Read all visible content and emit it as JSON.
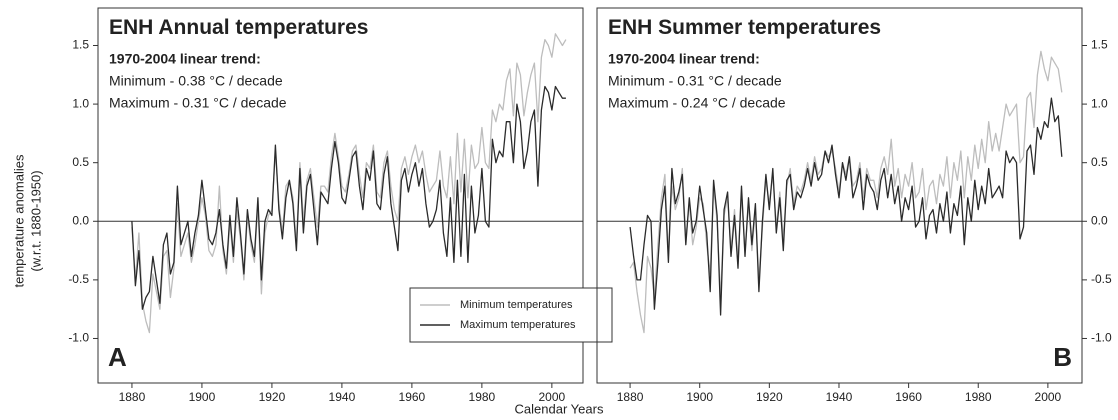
{
  "chart_data": [
    {
      "type": "line",
      "title": "ENH Annual temperatures",
      "panel_label": "A",
      "trend_title": "1970-2004 linear trend:",
      "trend_lines": [
        "Minimum - 0.38 °C / decade",
        "Maximum - 0.31 °C / decade"
      ],
      "xlim": [
        1870.3,
        2008.9
      ],
      "xticks": [
        1880,
        1900,
        1920,
        1940,
        1960,
        1980,
        2000
      ],
      "ylim": [
        -1.38,
        1.82
      ],
      "yticks": [
        {
          "value": -1,
          "label": "-1.0"
        },
        -0.5,
        {
          "value": 0,
          "label": "0.0"
        },
        0.5,
        {
          "value": 1,
          "label": "1.0"
        },
        1.5
      ],
      "y_axis_side": "left",
      "reference_line": 0,
      "legend": "lower center",
      "x": [
        1880,
        1881,
        1882,
        1883,
        1884,
        1885,
        1886,
        1887,
        1888,
        1889,
        1890,
        1891,
        1892,
        1893,
        1894,
        1895,
        1896,
        1897,
        1898,
        1899,
        1900,
        1901,
        1902,
        1903,
        1904,
        1905,
        1906,
        1907,
        1908,
        1909,
        1910,
        1911,
        1912,
        1913,
        1914,
        1915,
        1916,
        1917,
        1918,
        1919,
        1920,
        1921,
        1922,
        1923,
        1924,
        1925,
        1926,
        1927,
        1928,
        1929,
        1930,
        1931,
        1932,
        1933,
        1934,
        1935,
        1936,
        1937,
        1938,
        1939,
        1940,
        1941,
        1942,
        1943,
        1944,
        1945,
        1946,
        1947,
        1948,
        1949,
        1950,
        1951,
        1952,
        1953,
        1954,
        1955,
        1956,
        1957,
        1958,
        1959,
        1960,
        1961,
        1962,
        1963,
        1964,
        1965,
        1966,
        1967,
        1968,
        1969,
        1970,
        1971,
        1972,
        1973,
        1974,
        1975,
        1976,
        1977,
        1978,
        1979,
        1980,
        1981,
        1982,
        1983,
        1984,
        1985,
        1986,
        1987,
        1988,
        1989,
        1990,
        1991,
        1992,
        1993,
        1994,
        1995,
        1996,
        1997,
        1998,
        1999,
        2000,
        2001,
        2002,
        2003,
        2004
      ],
      "series": [
        {
          "name": "Minimum temperatures",
          "color": "#bdbdbd",
          "values": [
            -0.05,
            -0.5,
            -0.1,
            -0.7,
            -0.85,
            -0.95,
            -0.45,
            -0.6,
            -0.75,
            -0.3,
            -0.25,
            -0.65,
            -0.4,
            0.15,
            -0.3,
            -0.2,
            -0.1,
            -0.35,
            -0.2,
            0.0,
            0.2,
            0.05,
            -0.25,
            -0.3,
            -0.2,
            0.3,
            -0.25,
            -0.45,
            0.0,
            -0.35,
            0.1,
            -0.15,
            -0.5,
            0.05,
            -0.2,
            -0.35,
            0.15,
            -0.62,
            -0.1,
            0.05,
            0.1,
            0.6,
            0.15,
            -0.1,
            0.3,
            0.35,
            0.2,
            -0.2,
            0.5,
            0.0,
            0.35,
            0.45,
            0.2,
            -0.05,
            0.3,
            0.3,
            0.25,
            0.55,
            0.75,
            0.55,
            0.3,
            0.25,
            0.4,
            0.6,
            0.65,
            0.4,
            0.2,
            0.5,
            0.45,
            0.65,
            0.25,
            0.2,
            0.5,
            0.6,
            0.3,
            0.1,
            0.0,
            0.45,
            0.55,
            0.4,
            0.55,
            0.65,
            0.5,
            0.6,
            0.4,
            0.25,
            0.3,
            0.35,
            0.6,
            0.3,
            0.2,
            0.55,
            0.15,
            0.75,
            0.25,
            0.7,
            0.2,
            0.65,
            0.45,
            0.5,
            0.8,
            0.5,
            0.45,
            0.95,
            0.85,
            1.0,
            0.95,
            1.2,
            1.3,
            0.9,
            1.35,
            1.25,
            0.9,
            1.1,
            1.25,
            1.35,
            0.85,
            1.4,
            1.55,
            1.5,
            1.4,
            1.6,
            1.55,
            1.5,
            1.55
          ]
        },
        {
          "name": "Maximum temperatures",
          "color": "#2b2b2b",
          "values": [
            0.0,
            -0.55,
            -0.25,
            -0.75,
            -0.65,
            -0.6,
            -0.3,
            -0.5,
            -0.7,
            -0.2,
            -0.1,
            -0.45,
            -0.35,
            0.3,
            -0.2,
            -0.1,
            0.0,
            -0.3,
            -0.1,
            0.05,
            0.35,
            0.1,
            -0.15,
            -0.2,
            -0.1,
            0.1,
            -0.2,
            -0.4,
            0.05,
            -0.3,
            0.2,
            -0.1,
            -0.45,
            0.1,
            -0.15,
            -0.3,
            0.2,
            -0.5,
            0.0,
            0.1,
            0.05,
            0.65,
            0.1,
            -0.15,
            0.2,
            0.35,
            0.15,
            -0.25,
            0.45,
            -0.1,
            0.3,
            0.4,
            0.1,
            -0.2,
            0.25,
            0.2,
            0.15,
            0.45,
            0.68,
            0.5,
            0.2,
            0.15,
            0.35,
            0.55,
            0.6,
            0.3,
            0.1,
            0.45,
            0.35,
            0.6,
            0.15,
            0.1,
            0.4,
            0.55,
            0.15,
            -0.05,
            -0.25,
            0.35,
            0.45,
            0.25,
            0.4,
            0.5,
            0.3,
            0.45,
            0.15,
            -0.05,
            0.0,
            0.1,
            0.35,
            -0.1,
            -0.3,
            0.2,
            -0.35,
            0.35,
            -0.3,
            0.4,
            -0.35,
            0.3,
            -0.1,
            0.05,
            0.45,
            0.0,
            -0.05,
            0.7,
            0.5,
            0.6,
            0.55,
            0.85,
            0.85,
            0.5,
            1.0,
            0.85,
            0.45,
            0.6,
            0.85,
            0.95,
            0.3,
            0.95,
            1.15,
            1.1,
            0.95,
            1.15,
            1.1,
            1.05,
            1.05
          ]
        }
      ]
    },
    {
      "type": "line",
      "title": "ENH Summer temperatures",
      "panel_label": "B",
      "trend_title": "1970-2004 linear trend:",
      "trend_lines": [
        "Minimum - 0.31 °C / decade",
        "Maximum - 0.24 °C / decade"
      ],
      "xlim": [
        1870.5,
        2009.8
      ],
      "xticks": [
        1880,
        1900,
        1920,
        1940,
        1960,
        1980,
        2000
      ],
      "ylim": [
        -1.38,
        1.82
      ],
      "yticks": [
        {
          "value": -1,
          "label": "-1.0"
        },
        -0.5,
        {
          "value": 0,
          "label": "0.0"
        },
        0.5,
        {
          "value": 1,
          "label": "1.0"
        },
        1.5
      ],
      "y_axis_side": "right",
      "reference_line": 0,
      "x": [
        1880,
        1881,
        1882,
        1883,
        1884,
        1885,
        1886,
        1887,
        1888,
        1889,
        1890,
        1891,
        1892,
        1893,
        1894,
        1895,
        1896,
        1897,
        1898,
        1899,
        1900,
        1901,
        1902,
        1903,
        1904,
        1905,
        1906,
        1907,
        1908,
        1909,
        1910,
        1911,
        1912,
        1913,
        1914,
        1915,
        1916,
        1917,
        1918,
        1919,
        1920,
        1921,
        1922,
        1923,
        1924,
        1925,
        1926,
        1927,
        1928,
        1929,
        1930,
        1931,
        1932,
        1933,
        1934,
        1935,
        1936,
        1937,
        1938,
        1939,
        1940,
        1941,
        1942,
        1943,
        1944,
        1945,
        1946,
        1947,
        1948,
        1949,
        1950,
        1951,
        1952,
        1953,
        1954,
        1955,
        1956,
        1957,
        1958,
        1959,
        1960,
        1961,
        1962,
        1963,
        1964,
        1965,
        1966,
        1967,
        1968,
        1969,
        1970,
        1971,
        1972,
        1973,
        1974,
        1975,
        1976,
        1977,
        1978,
        1979,
        1980,
        1981,
        1982,
        1983,
        1984,
        1985,
        1986,
        1987,
        1988,
        1989,
        1990,
        1991,
        1992,
        1993,
        1994,
        1995,
        1996,
        1997,
        1998,
        1999,
        2000,
        2001,
        2002,
        2003,
        2004
      ],
      "series": [
        {
          "color": "#bdbdbd",
          "values": [
            -0.4,
            -0.35,
            -0.6,
            -0.8,
            -0.95,
            -0.3,
            -0.4,
            -0.65,
            -0.2,
            0.2,
            0.4,
            -0.3,
            0.3,
            0.1,
            0.2,
            0.45,
            -0.15,
            0.15,
            -0.2,
            -0.05,
            0.2,
            0.15,
            -0.2,
            -0.45,
            0.3,
            0.0,
            -0.65,
            0.05,
            0.2,
            -0.25,
            0.1,
            -0.35,
            0.25,
            -0.25,
            0.15,
            -0.25,
            0.1,
            -0.5,
            -0.05,
            0.35,
            0.15,
            0.4,
            -0.05,
            0.25,
            -0.15,
            0.3,
            0.45,
            0.15,
            0.3,
            0.25,
            0.35,
            0.5,
            0.35,
            0.55,
            0.4,
            0.45,
            0.6,
            0.55,
            0.6,
            0.45,
            0.25,
            0.5,
            0.4,
            0.55,
            0.3,
            0.35,
            0.5,
            0.2,
            0.45,
            0.35,
            0.35,
            0.2,
            0.45,
            0.55,
            0.4,
            0.7,
            0.3,
            0.45,
            0.2,
            0.4,
            0.3,
            0.5,
            0.2,
            0.25,
            0.45,
            0.1,
            0.3,
            0.35,
            0.15,
            0.4,
            0.3,
            0.55,
            0.2,
            0.5,
            0.35,
            0.6,
            0.2,
            0.55,
            0.35,
            0.65,
            0.45,
            0.7,
            0.5,
            0.85,
            0.6,
            0.75,
            0.6,
            0.8,
            1.0,
            0.9,
            0.95,
            1.0,
            0.5,
            0.55,
            1.05,
            1.1,
            0.8,
            1.25,
            1.45,
            1.3,
            1.2,
            1.4,
            1.35,
            1.3,
            1.1
          ]
        },
        {
          "color": "#2b2b2b",
          "values": [
            -0.05,
            -0.3,
            -0.5,
            -0.5,
            -0.2,
            0.05,
            0.0,
            -0.75,
            -0.35,
            0.1,
            0.3,
            -0.35,
            0.45,
            0.15,
            0.25,
            0.4,
            -0.2,
            0.2,
            -0.1,
            0.0,
            0.3,
            0.1,
            -0.1,
            -0.6,
            0.35,
            0.05,
            -0.8,
            0.1,
            0.25,
            -0.3,
            0.05,
            -0.4,
            0.3,
            -0.3,
            0.2,
            -0.2,
            0.15,
            -0.6,
            0.0,
            0.4,
            0.1,
            0.45,
            -0.1,
            0.2,
            -0.25,
            0.35,
            0.4,
            0.1,
            0.25,
            0.2,
            0.3,
            0.45,
            0.3,
            0.5,
            0.35,
            0.4,
            0.6,
            0.5,
            0.65,
            0.4,
            0.2,
            0.5,
            0.35,
            0.55,
            0.2,
            0.3,
            0.45,
            0.1,
            0.4,
            0.3,
            0.25,
            0.1,
            0.35,
            0.45,
            0.2,
            0.4,
            0.15,
            0.3,
            0.0,
            0.2,
            0.1,
            0.3,
            -0.05,
            0.0,
            0.2,
            -0.15,
            0.05,
            0.1,
            -0.1,
            0.15,
            0.0,
            0.25,
            -0.1,
            0.15,
            0.05,
            0.3,
            -0.2,
            0.2,
            0.0,
            0.35,
            0.1,
            0.3,
            0.15,
            0.45,
            0.2,
            0.25,
            0.3,
            0.2,
            0.6,
            0.5,
            0.55,
            0.5,
            -0.15,
            -0.05,
            0.6,
            0.65,
            0.4,
            0.8,
            0.7,
            0.85,
            0.8,
            1.05,
            0.85,
            0.9,
            0.55
          ]
        }
      ]
    }
  ],
  "y_label": [
    "temperature anomalies",
    "(w.r.t. 1880-1950)"
  ],
  "x_label": "Calendar Years"
}
